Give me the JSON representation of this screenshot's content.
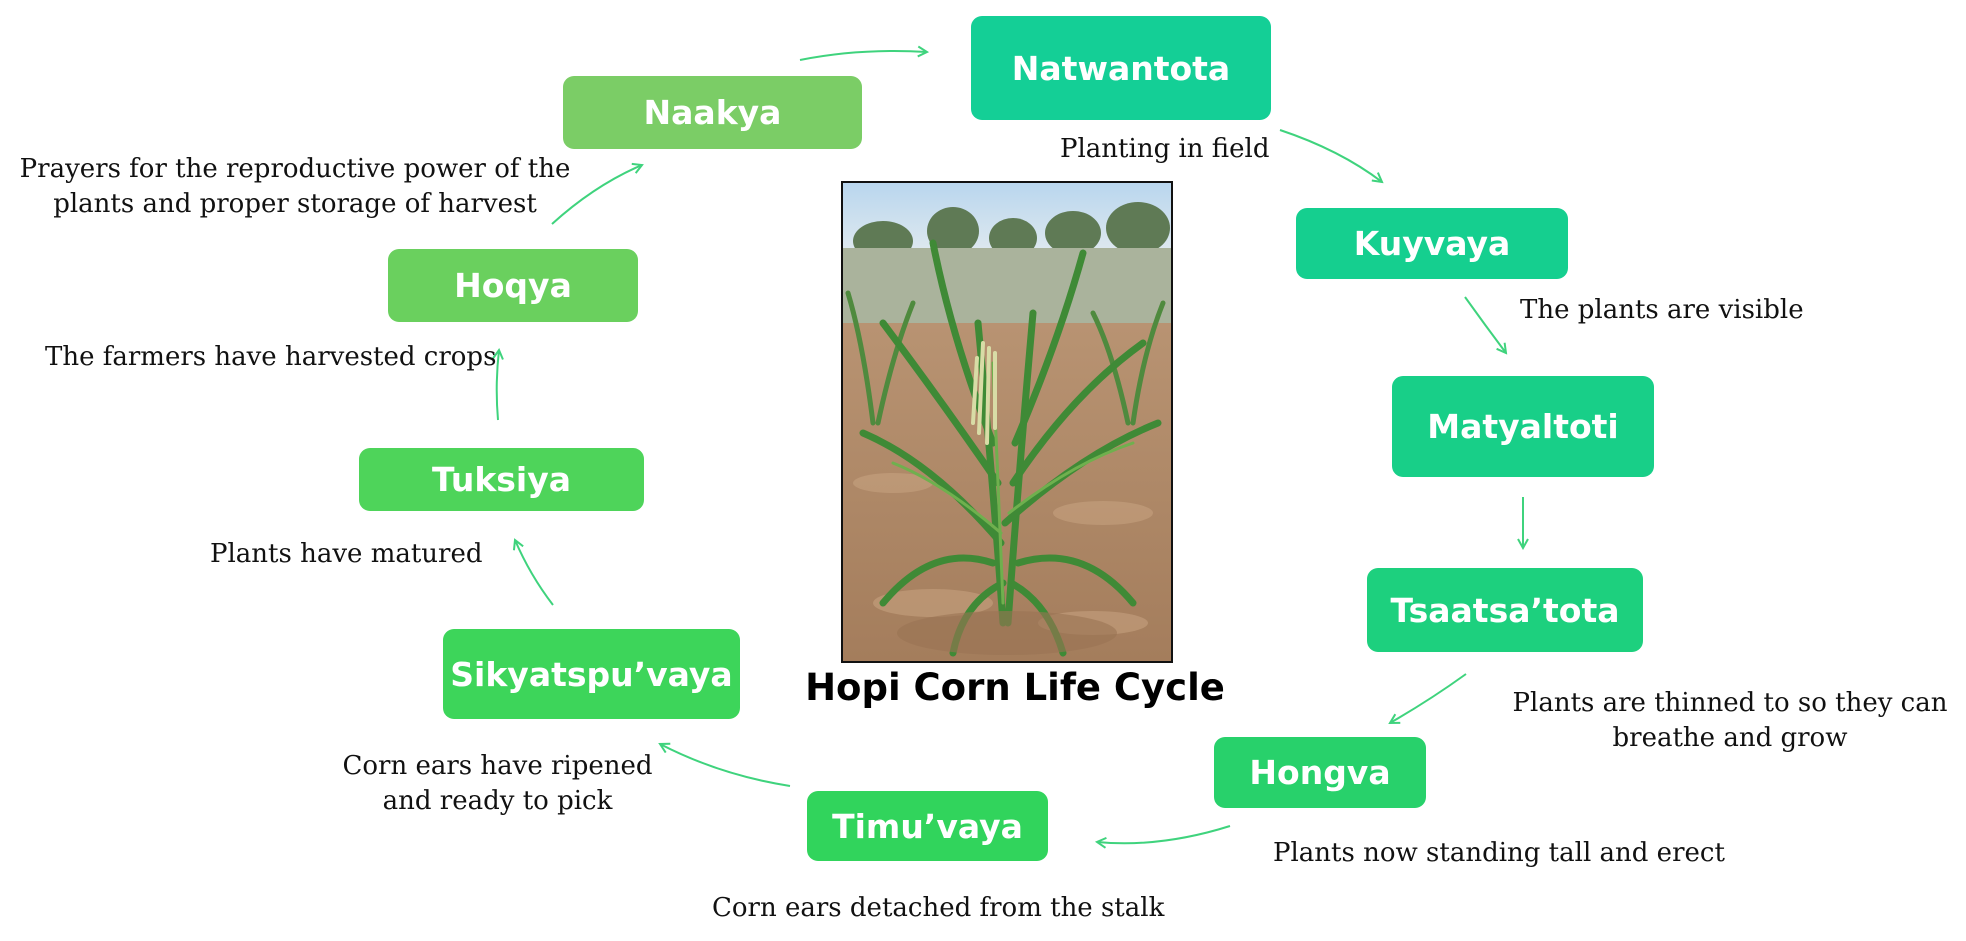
{
  "title": "Hopi Corn Life Cycle",
  "colors": {
    "teal": "#14cf96",
    "green": "#31d45c",
    "light_green": "#7bcd66",
    "arrow": "#3fd37d"
  },
  "photo": {
    "subject": "corn-plant-icon"
  },
  "stages": [
    {
      "name": "Natwantota",
      "description": "Planting in field"
    },
    {
      "name": "Kuyvaya",
      "description": "The plants are visible"
    },
    {
      "name": "Matyaltoti",
      "description": ""
    },
    {
      "name": "Tsaatsa’tota",
      "description": ""
    },
    {
      "name": "Hongva",
      "description": "Plants now standing tall and erect"
    },
    {
      "name": "Timu’vaya",
      "description": "Corn ears detached from the stalk"
    },
    {
      "name": "Sikyatspu’vaya",
      "description": ""
    },
    {
      "name": "Tuksiya",
      "description": ""
    },
    {
      "name": "Hoqya",
      "description": ""
    },
    {
      "name": "Naakya",
      "description": ""
    }
  ],
  "texts": {
    "plants_thinned": [
      "Plants are thinned to so they can",
      "breathe and grow"
    ],
    "corn_ripened": [
      "Corn ears have ripened",
      "and ready to pick"
    ],
    "plants_matured": "Plants have matured",
    "farmers_harvested": "The farmers have harvested crops",
    "prayers": [
      "Prayers for the reproductive  power of the",
      "plants and proper storage of harvest"
    ]
  }
}
